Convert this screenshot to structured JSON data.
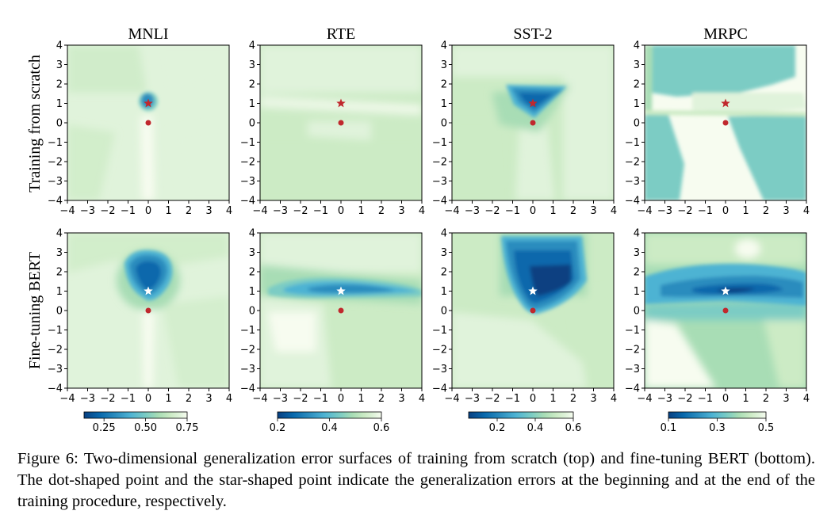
{
  "figure": {
    "caption_label": "Figure 6:",
    "caption_text": "Two-dimensional generalization error surfaces of training from scratch (top) and fine-tuning BERT (bottom). The dot-shaped point and the star-shaped point indicate the generalization errors at the beginning and at the end of the training procedure, respectively."
  },
  "colors": {
    "lightest": "#f7fcf0",
    "light": "#e0f3db",
    "pale_green": "#ccebc5",
    "mid_green": "#a8ddb5",
    "teal_light": "#7bccc4",
    "teal": "#4eb3d3",
    "blue": "#2b8cbe",
    "dark_blue": "#0868ac",
    "navy": "#084081",
    "marker": "#c0282d",
    "star_end_finetune": "#ffffff"
  },
  "chart_data": [
    {
      "type": "heatmap",
      "title": "MNLI",
      "row_label": "Training from scratch",
      "x_ticks": [
        "−4",
        "−3",
        "−2",
        "−1",
        "0",
        "1",
        "2",
        "3",
        "4"
      ],
      "y_ticks": [
        "4",
        "3",
        "2",
        "1",
        "0",
        "−1",
        "−2",
        "−3",
        "−4"
      ],
      "xlim": [
        -4,
        4
      ],
      "ylim": [
        -4,
        4
      ],
      "start_point": [
        0,
        0
      ],
      "end_point": [
        0,
        1
      ]
    },
    {
      "type": "heatmap",
      "title": "RTE",
      "row_label": "Training from scratch",
      "x_ticks": [
        "−4",
        "−3",
        "−2",
        "−1",
        "0",
        "1",
        "2",
        "3",
        "4"
      ],
      "y_ticks": [
        "4",
        "3",
        "2",
        "1",
        "0",
        "−1",
        "−2",
        "−3",
        "−4"
      ],
      "xlim": [
        -4,
        4
      ],
      "ylim": [
        -4,
        4
      ],
      "start_point": [
        0,
        0
      ],
      "end_point": [
        0,
        1
      ]
    },
    {
      "type": "heatmap",
      "title": "SST-2",
      "row_label": "Training from scratch",
      "x_ticks": [
        "−4",
        "−3",
        "−2",
        "−1",
        "0",
        "1",
        "2",
        "3",
        "4"
      ],
      "y_ticks": [
        "4",
        "3",
        "2",
        "1",
        "0",
        "−1",
        "−2",
        "−3",
        "−4"
      ],
      "xlim": [
        -4,
        4
      ],
      "ylim": [
        -4,
        4
      ],
      "start_point": [
        0,
        0
      ],
      "end_point": [
        0,
        1
      ]
    },
    {
      "type": "heatmap",
      "title": "MRPC",
      "row_label": "Training from scratch",
      "x_ticks": [
        "−4",
        "−3",
        "−2",
        "−1",
        "0",
        "1",
        "2",
        "3",
        "4"
      ],
      "y_ticks": [
        "4",
        "3",
        "2",
        "1",
        "0",
        "−1",
        "−2",
        "−3",
        "−4"
      ],
      "xlim": [
        -4,
        4
      ],
      "ylim": [
        -4,
        4
      ],
      "start_point": [
        0,
        0
      ],
      "end_point": [
        0,
        1
      ]
    },
    {
      "type": "heatmap",
      "title": "MNLI",
      "row_label": "Fine-tuning BERT",
      "x_ticks": [
        "−4",
        "−3",
        "−2",
        "−1",
        "0",
        "1",
        "2",
        "3",
        "4"
      ],
      "y_ticks": [
        "4",
        "3",
        "2",
        "1",
        "0",
        "−1",
        "−2",
        "−3",
        "−4"
      ],
      "xlim": [
        -4,
        4
      ],
      "ylim": [
        -4,
        4
      ],
      "start_point": [
        0,
        0
      ],
      "end_point": [
        0,
        1
      ],
      "colorbar": {
        "ticks": [
          "0.25",
          "0.50",
          "0.75"
        ],
        "range": [
          0.13,
          0.75
        ]
      }
    },
    {
      "type": "heatmap",
      "title": "RTE",
      "row_label": "Fine-tuning BERT",
      "x_ticks": [
        "−4",
        "−3",
        "−2",
        "−1",
        "0",
        "1",
        "2",
        "3",
        "4"
      ],
      "y_ticks": [
        "4",
        "3",
        "2",
        "1",
        "0",
        "−1",
        "−2",
        "−3",
        "−4"
      ],
      "xlim": [
        -4,
        4
      ],
      "ylim": [
        -4,
        4
      ],
      "start_point": [
        0,
        0
      ],
      "end_point": [
        0,
        1
      ],
      "colorbar": {
        "ticks": [
          "0.2",
          "0.4",
          "0.6"
        ],
        "range": [
          0.2,
          0.6
        ]
      }
    },
    {
      "type": "heatmap",
      "title": "SST-2",
      "row_label": "Fine-tuning BERT",
      "x_ticks": [
        "−4",
        "−3",
        "−2",
        "−1",
        "0",
        "1",
        "2",
        "3",
        "4"
      ],
      "y_ticks": [
        "4",
        "3",
        "2",
        "1",
        "0",
        "−1",
        "−2",
        "−3",
        "−4"
      ],
      "xlim": [
        -4,
        4
      ],
      "ylim": [
        -4,
        4
      ],
      "start_point": [
        0,
        0
      ],
      "end_point": [
        0,
        1
      ],
      "colorbar": {
        "ticks": [
          "0.2",
          "0.4",
          "0.6"
        ],
        "range": [
          0.05,
          0.6
        ]
      }
    },
    {
      "type": "heatmap",
      "title": "MRPC",
      "row_label": "Fine-tuning BERT",
      "x_ticks": [
        "−4",
        "−3",
        "−2",
        "−1",
        "0",
        "1",
        "2",
        "3",
        "4"
      ],
      "y_ticks": [
        "4",
        "3",
        "2",
        "1",
        "0",
        "−1",
        "−2",
        "−3",
        "−4"
      ],
      "xlim": [
        -4,
        4
      ],
      "ylim": [
        -4,
        4
      ],
      "start_point": [
        0,
        0
      ],
      "end_point": [
        0,
        1
      ],
      "colorbar": {
        "ticks": [
          "0.1",
          "0.3",
          "0.5"
        ],
        "range": [
          0.1,
          0.5
        ]
      }
    }
  ]
}
